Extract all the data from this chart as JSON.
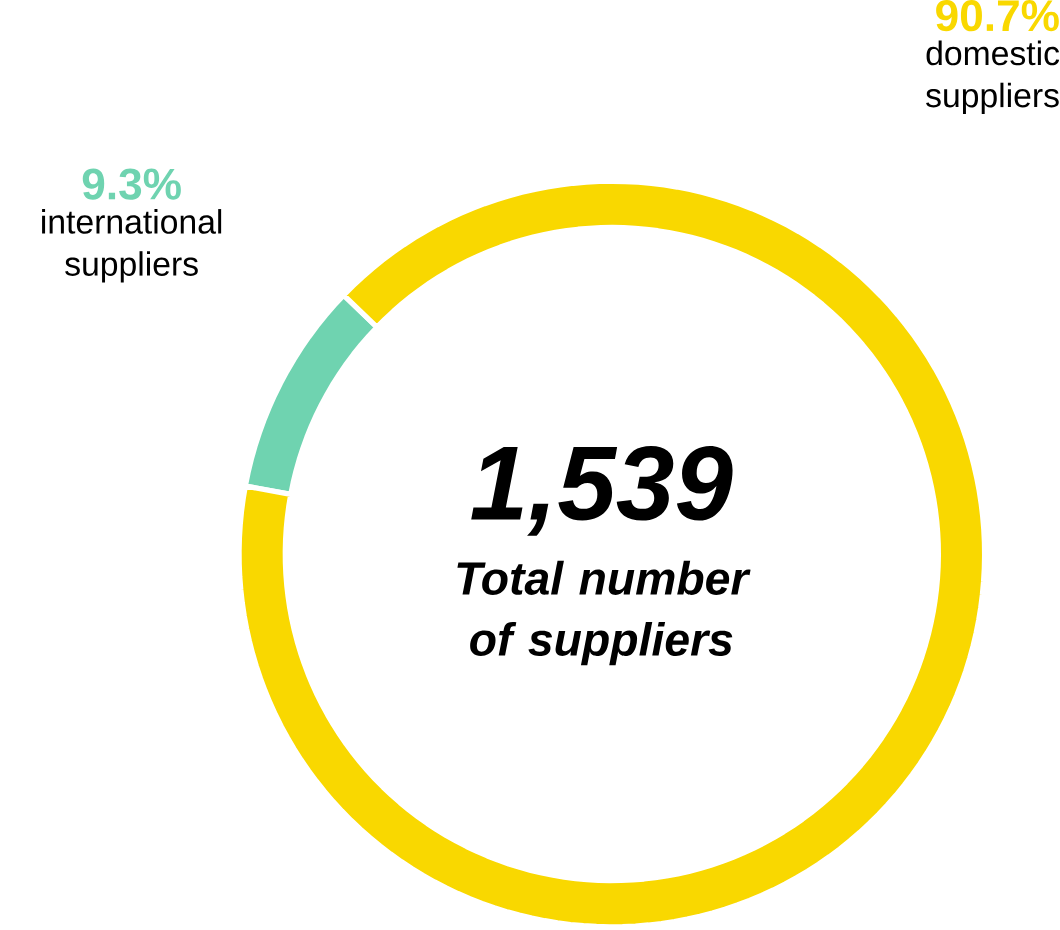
{
  "chart_data": {
    "type": "donut",
    "categories": [
      "international suppliers",
      "domestic suppliers"
    ],
    "values": [
      9.3,
      90.7
    ],
    "colors": [
      "#6fd3b0",
      "#f9d800"
    ],
    "value_labels": [
      "9.3%",
      "90.7%"
    ],
    "annotations": [
      "1,539",
      "Total number of suppliers"
    ]
  }
}
